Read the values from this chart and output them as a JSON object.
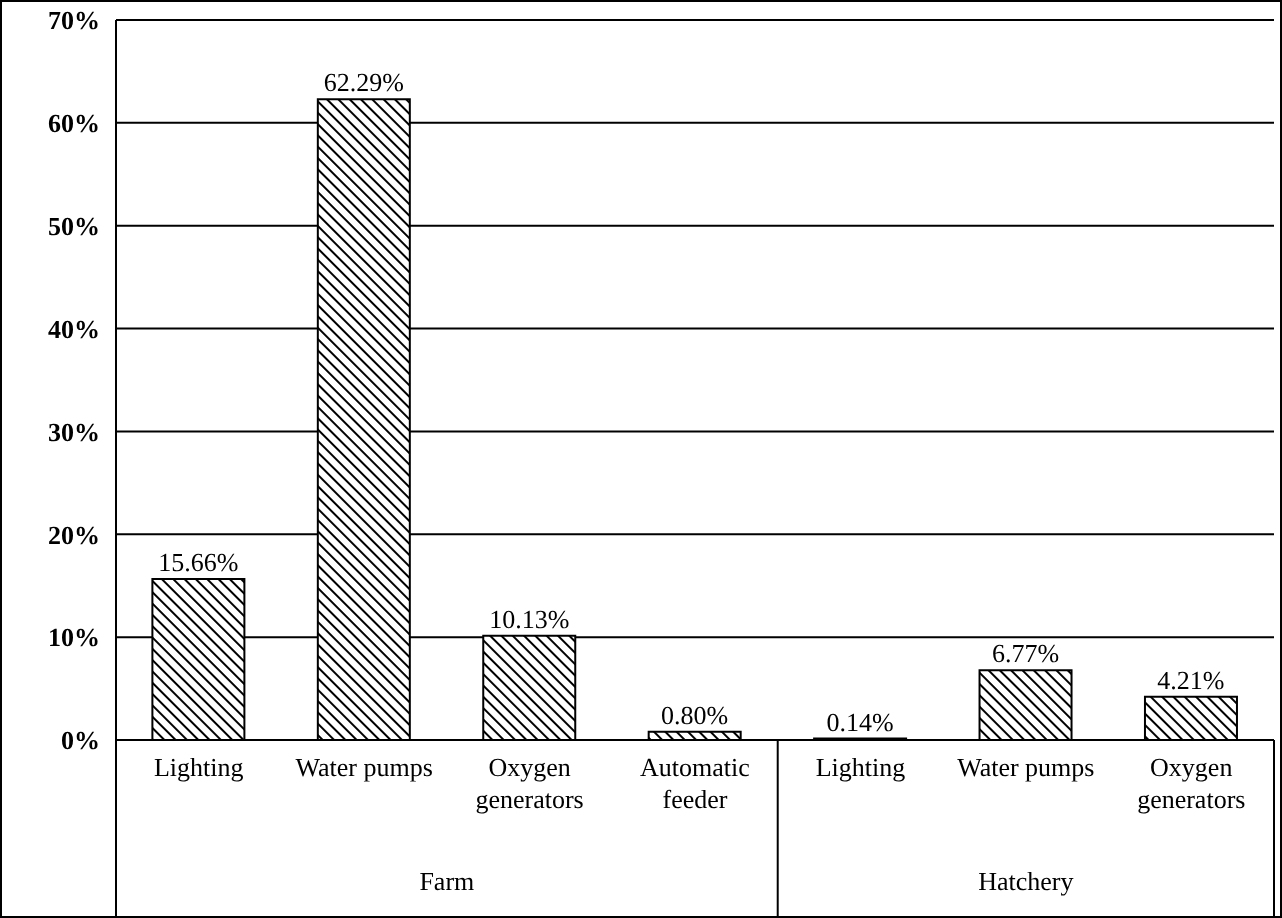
{
  "chart_data": {
    "type": "bar",
    "categories": [
      "Lighting",
      "Water pumps",
      "Oxygen generators",
      "Automatic feeder",
      "Lighting",
      "Water pumps",
      "Oxygen generators"
    ],
    "values": [
      15.66,
      62.29,
      10.13,
      0.8,
      0.14,
      6.77,
      4.21
    ],
    "value_labels": [
      "15.66%",
      "62.29%",
      "10.13%",
      "0.80%",
      "0.14%",
      "6.77%",
      "4.21%"
    ],
    "color": "#000000",
    "ylim": [
      0,
      70
    ],
    "yticks": [
      {
        "value": 0,
        "label": "0%"
      },
      {
        "value": 10,
        "label": "10%"
      },
      {
        "value": 20,
        "label": "20%"
      },
      {
        "value": 30,
        "label": "30%"
      },
      {
        "value": 40,
        "label": "40%"
      },
      {
        "value": 50,
        "label": "50%"
      },
      {
        "value": 60,
        "label": "60%"
      },
      {
        "value": 70,
        "label": "70%"
      }
    ],
    "grid": "y",
    "annotations": [
      "Farm",
      "Hatchery"
    ]
  }
}
